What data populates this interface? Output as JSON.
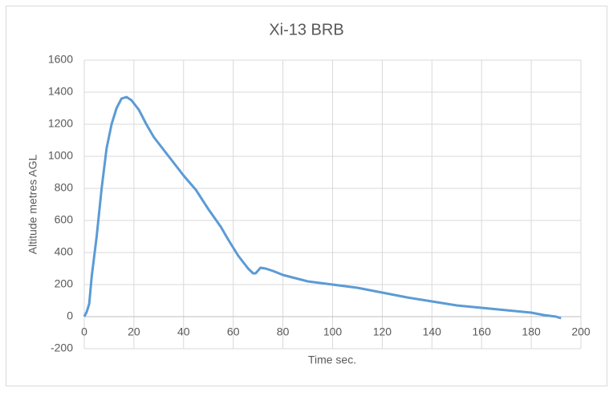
{
  "chart_data": {
    "type": "line",
    "title": "Xi-13 BRB",
    "x_label": "Time sec.",
    "y_label": "Altitude metres AGL",
    "series": [
      {
        "name": "Altitude",
        "color": "#5b9bd5",
        "x": [
          0,
          1,
          2,
          3,
          5,
          7,
          9,
          11,
          13,
          15,
          17,
          19,
          22,
          25,
          28,
          32,
          36,
          40,
          45,
          50,
          55,
          58,
          62,
          66,
          68,
          69,
          71,
          73,
          76,
          80,
          85,
          90,
          100,
          110,
          120,
          130,
          140,
          150,
          160,
          170,
          180,
          185,
          190,
          192
        ],
        "values": [
          0,
          30,
          80,
          250,
          500,
          800,
          1050,
          1200,
          1300,
          1360,
          1370,
          1350,
          1290,
          1200,
          1120,
          1040,
          960,
          880,
          790,
          670,
          560,
          480,
          380,
          300,
          270,
          270,
          305,
          300,
          285,
          260,
          240,
          220,
          200,
          180,
          150,
          120,
          95,
          70,
          55,
          40,
          25,
          10,
          0,
          -10
        ]
      }
    ],
    "xlim": [
      0,
      200
    ],
    "xticks": [
      0,
      20,
      40,
      60,
      80,
      100,
      120,
      140,
      160,
      180,
      200
    ],
    "ylim": [
      -200,
      1600
    ],
    "yticks": [
      -200,
      0,
      200,
      400,
      600,
      800,
      1000,
      1200,
      1400,
      1600
    ],
    "grid": true
  }
}
